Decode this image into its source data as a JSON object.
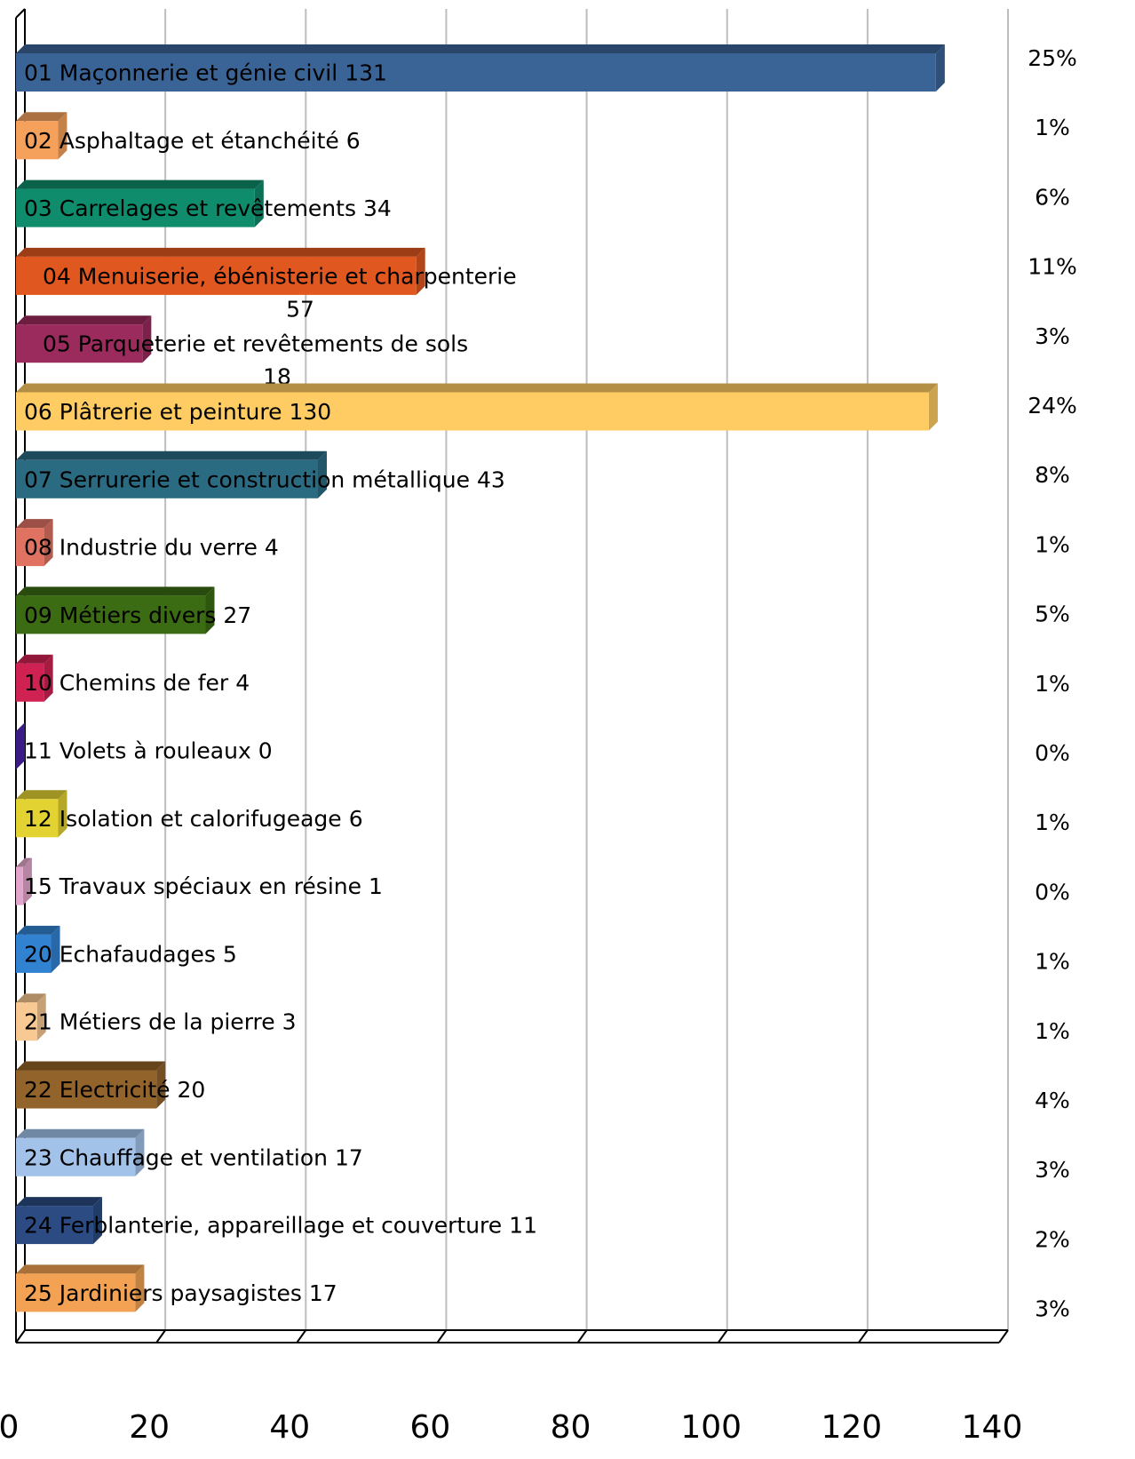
{
  "chart_data": {
    "type": "bar",
    "orientation": "horizontal",
    "categories": [
      "01 Maçonnerie et génie civil",
      "02 Asphaltage et étanchéité",
      "03 Carrelages et revêtements",
      "04 Menuiserie, ébénisterie et charpenterie",
      "05 Parqueterie et revêtements de sols",
      "06 Plâtrerie et peinture",
      "07 Serrurerie et construction métallique",
      "08 Industrie du verre",
      "09 Métiers divers",
      "10 Chemins de fer",
      "11 Volets à rouleaux",
      "12 Isolation et calorifugeage",
      "15 Travaux spéciaux en résine",
      "20 Echafaudages",
      "21 Métiers de la pierre",
      "22 Electricité",
      "23 Chauffage et ventilation",
      "24 Ferblanterie, appareillage et couverture",
      "25 Jardiniers paysagistes"
    ],
    "values": [
      131,
      6,
      34,
      57,
      18,
      130,
      43,
      4,
      27,
      4,
      0,
      6,
      1,
      5,
      3,
      20,
      17,
      11,
      17
    ],
    "shares": [
      "25%",
      "1%",
      "6%",
      "11%",
      "3%",
      "24%",
      "8%",
      "1%",
      "5%",
      "1%",
      "0%",
      "1%",
      "0%",
      "1%",
      "1%",
      "4%",
      "3%",
      "2%",
      "3%"
    ],
    "colors": [
      "#3a6396",
      "#f5a15c",
      "#0f8c6b",
      "#e0571f",
      "#9b2b5c",
      "#ffcc63",
      "#2b6b82",
      "#e07262",
      "#3b6b12",
      "#d02252",
      "#4a22a8",
      "#e2d232",
      "#e2a6cc",
      "#3282d2",
      "#f8c992",
      "#92632a",
      "#a2c2ea",
      "#2b4b82",
      "#f2a252"
    ],
    "xlim": [
      0,
      140
    ],
    "xticks": [
      0,
      20,
      40,
      60,
      80,
      100,
      120,
      140
    ],
    "grid": true
  }
}
